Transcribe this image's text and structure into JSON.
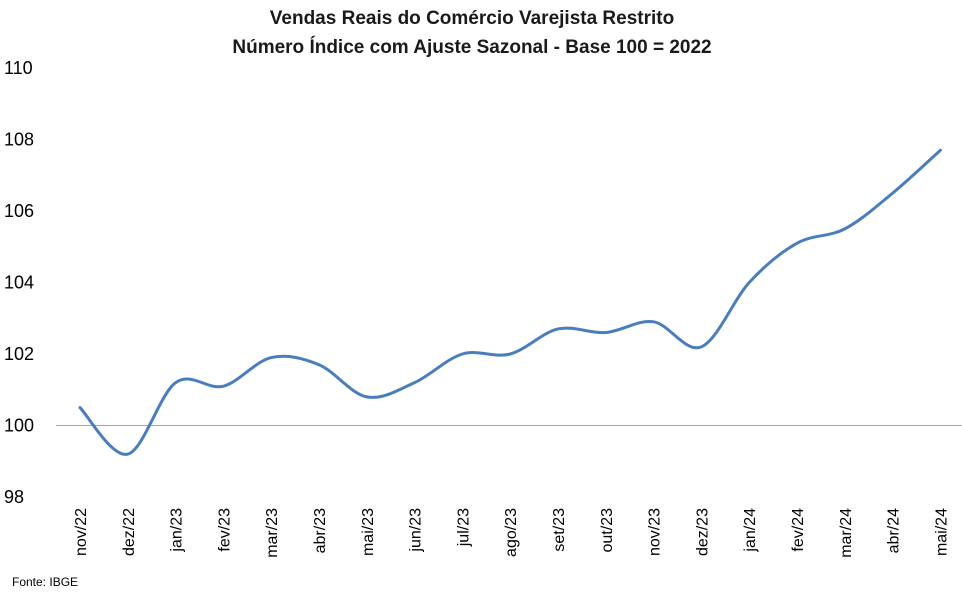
{
  "chart_data": {
    "type": "line",
    "title": "Vendas Reais do Comércio Varejista Restrito",
    "subtitle": "Número Índice com Ajuste Sazonal - Base 100 = 2022",
    "xlabel": "",
    "ylabel": "",
    "ylim": [
      98,
      110
    ],
    "yticks": [
      "98",
      "100",
      "102",
      "104",
      "106",
      "108",
      "110"
    ],
    "grid": false,
    "legend": "none",
    "reference_line": 100,
    "categories": [
      "nov/22",
      "dez/22",
      "jan/23",
      "fev/23",
      "mar/23",
      "abr/23",
      "mai/23",
      "jun/23",
      "jul/23",
      "ago/23",
      "set/23",
      "out/23",
      "nov/23",
      "dez/23",
      "jan/24",
      "fev/24",
      "mar/24",
      "abr/24",
      "mai/24"
    ],
    "series": [
      {
        "color": "#4a7ebb",
        "values": [
          100.5,
          99.2,
          101.2,
          101.1,
          101.9,
          101.7,
          100.8,
          101.2,
          102.0,
          102.0,
          102.7,
          102.6,
          102.9,
          102.2,
          104.0,
          105.1,
          105.5,
          106.5,
          107.7
        ]
      }
    ],
    "source": "Fonte: IBGE"
  }
}
